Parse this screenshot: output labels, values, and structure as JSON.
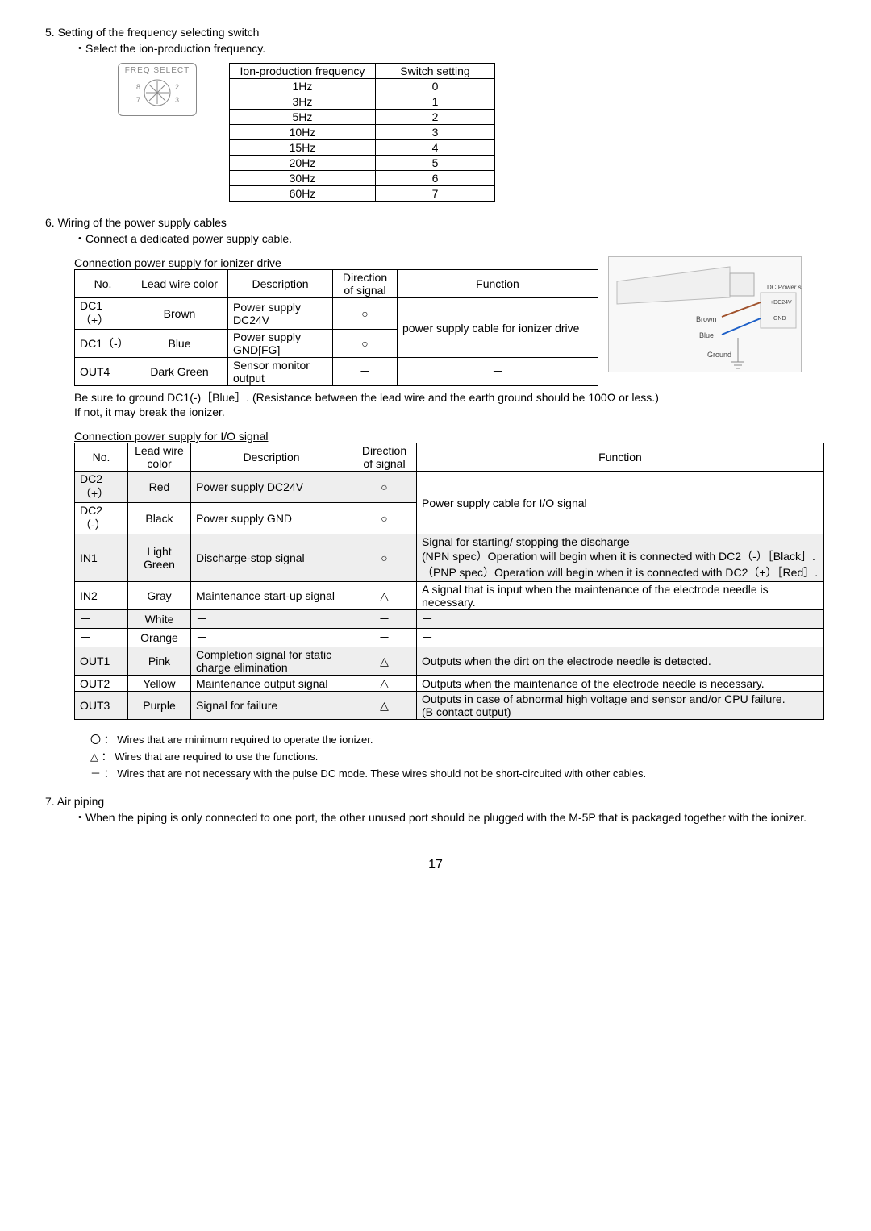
{
  "sec5": {
    "title": "5. Setting of the frequency selecting switch",
    "sub": "・Select the ion-production frequency.",
    "dial_label": "FREQ SELECT",
    "dial_nums": [
      "8",
      "2",
      "7",
      "3"
    ],
    "table": {
      "h1": "Ion-production frequency",
      "h2": "Switch setting",
      "rows": [
        [
          "1Hz",
          "0"
        ],
        [
          "3Hz",
          "1"
        ],
        [
          "5Hz",
          "2"
        ],
        [
          "10Hz",
          "3"
        ],
        [
          "15Hz",
          "4"
        ],
        [
          "20Hz",
          "5"
        ],
        [
          "30Hz",
          "6"
        ],
        [
          "60Hz",
          "7"
        ]
      ]
    }
  },
  "sec6": {
    "title": "6. Wiring of the power supply cables",
    "sub": "・Connect a dedicated power supply cable.",
    "ion_title": "Connection power supply  for ionizer drive",
    "ion_headers": [
      "No.",
      "Lead wire color",
      "Description",
      "Direction of signal",
      "Function"
    ],
    "ion_rows": [
      {
        "no": "DC1（+）",
        "color": "Brown",
        "desc": "Power supply DC24V",
        "dir": "○",
        "fn": "power supply  cable for ionizer drive"
      },
      {
        "no": "DC1（-）",
        "color": "Blue",
        "desc": "Power supply GND[FG]",
        "dir": "○",
        "fn": ""
      },
      {
        "no": "OUT4",
        "color": "Dark Green",
        "desc": "Sensor monitor output",
        "dir": "－",
        "fn": "－"
      }
    ],
    "ion_note_line1": " Be sure to ground DC1(-)［Blue］. (Resistance between the lead wire and the earth ground should be 100Ω  or less.)",
    "ion_note_line2": "If not, it may break the ionizer.",
    "io_title": "Connection power supply for I/O signal",
    "io_headers": [
      "No.",
      "Lead wire color",
      "Description",
      "Direction of signal",
      "Function"
    ],
    "io_rows": [
      {
        "no": "DC2（+）",
        "color": "Red",
        "desc": "Power supply DC24V",
        "dir": "○",
        "fn": "Power supply cable for I/O signal",
        "alt": true,
        "mergeFn": false
      },
      {
        "no": "DC2（-）",
        "color": "Black",
        "desc": "Power supply GND",
        "dir": "○",
        "fn": "",
        "alt": false,
        "mergeFn": true
      },
      {
        "no": "IN1",
        "color": "Light Green",
        "desc": "Discharge-stop signal",
        "dir": "○",
        "fn": "Signal for starting/ stopping the discharge\n(NPN spec）Operation will begin when it is connected with DC2（-）［Black］.\n（PNP spec）Operation will begin when it is connected with DC2（+）［Red］.",
        "alt": true
      },
      {
        "no": "IN2",
        "color": "Gray",
        "desc": "Maintenance start-up signal",
        "dir": "△",
        "fn": "A signal that is input when the maintenance of the electrode needle is necessary.",
        "alt": false
      },
      {
        "no": "－",
        "color": "White",
        "desc": "－",
        "dir": "－",
        "fn": "－",
        "alt": true
      },
      {
        "no": "－",
        "color": "Orange",
        "desc": "－",
        "dir": "－",
        "fn": "－",
        "alt": false
      },
      {
        "no": "OUT1",
        "color": "Pink",
        "desc": "Completion signal for static charge elimination",
        "dir": "△",
        "fn": "Outputs when the dirt on the electrode needle is detected.",
        "alt": true
      },
      {
        "no": "OUT2",
        "color": "Yellow",
        "desc": "Maintenance output signal",
        "dir": "△",
        "fn": "Outputs when the maintenance of the electrode needle is necessary.",
        "alt": false
      },
      {
        "no": "OUT3",
        "color": "Purple",
        "desc": "Signal for failure",
        "dir": "△",
        "fn": "Outputs in case of abnormal high voltage and sensor and/or CPU failure.\n(B contact output)",
        "alt": true
      }
    ],
    "conn_labels": {
      "dc_power": "DC Power supply",
      "brown": "Brown",
      "blue": "Blue",
      "ground": "Ground",
      "dc24v": "+DC24V",
      "gnd": "GND"
    }
  },
  "legend": [
    {
      "sym": "〇",
      "txt": "：  Wires that are minimum required to operate the ionizer."
    },
    {
      "sym": "△",
      "txt": "：  Wires that are required to use the functions."
    },
    {
      "sym": "－",
      "txt": "：  Wires that are not necessary with the pulse DC mode. These wires should not be short-circuited with other cables."
    }
  ],
  "sec7": {
    "title": "7. Air piping",
    "body": "・When the piping is only connected to one port, the other unused port should be plugged with the M-5P that is packaged together with the ionizer."
  },
  "page": "17"
}
